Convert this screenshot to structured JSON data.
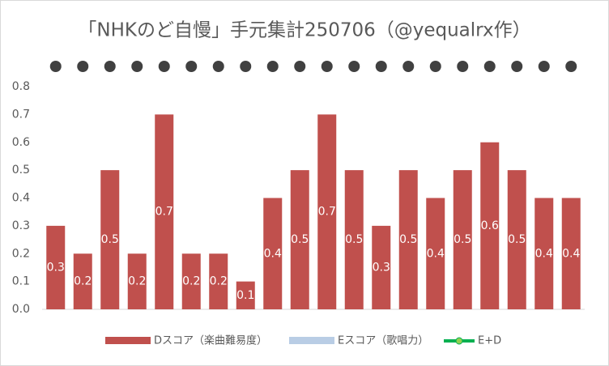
{
  "chart_data": {
    "type": "bar",
    "title": "「NHKのど自慢」手元集計250706（@yequalrx作）",
    "categories": [
      null,
      null,
      null,
      null,
      null,
      null,
      null,
      null,
      null,
      null,
      null,
      null,
      null,
      null,
      null,
      null,
      null,
      null,
      null,
      null
    ],
    "series": [
      {
        "name": "Dスコア（楽曲難易度）",
        "color": "#c0504d",
        "values": [
          0.3,
          0.2,
          0.5,
          0.2,
          0.7,
          0.2,
          0.2,
          0.1,
          0.4,
          0.5,
          0.7,
          0.5,
          0.3,
          0.5,
          0.4,
          0.5,
          0.6,
          0.5,
          0.4,
          0.4
        ]
      },
      {
        "name": "Eスコア（歌唱力）",
        "color": "#b9cde5",
        "values": [
          null,
          null,
          null,
          null,
          null,
          null,
          null,
          null,
          null,
          null,
          null,
          null,
          null,
          null,
          null,
          null,
          null,
          null,
          null,
          null
        ]
      },
      {
        "name": "E+D",
        "color": "#00b050",
        "values": [
          null,
          null,
          null,
          null,
          null,
          null,
          null,
          null,
          null,
          null,
          null,
          null,
          null,
          null,
          null,
          null,
          null,
          null,
          null,
          null
        ]
      }
    ],
    "ylim": [
      0,
      0.8
    ],
    "yticks": [
      {
        "value": 0,
        "label": "0.0"
      },
      0.1,
      0.2,
      0.3,
      0.4,
      0.5,
      0.6,
      0.7,
      0.8
    ],
    "grid": false
  }
}
